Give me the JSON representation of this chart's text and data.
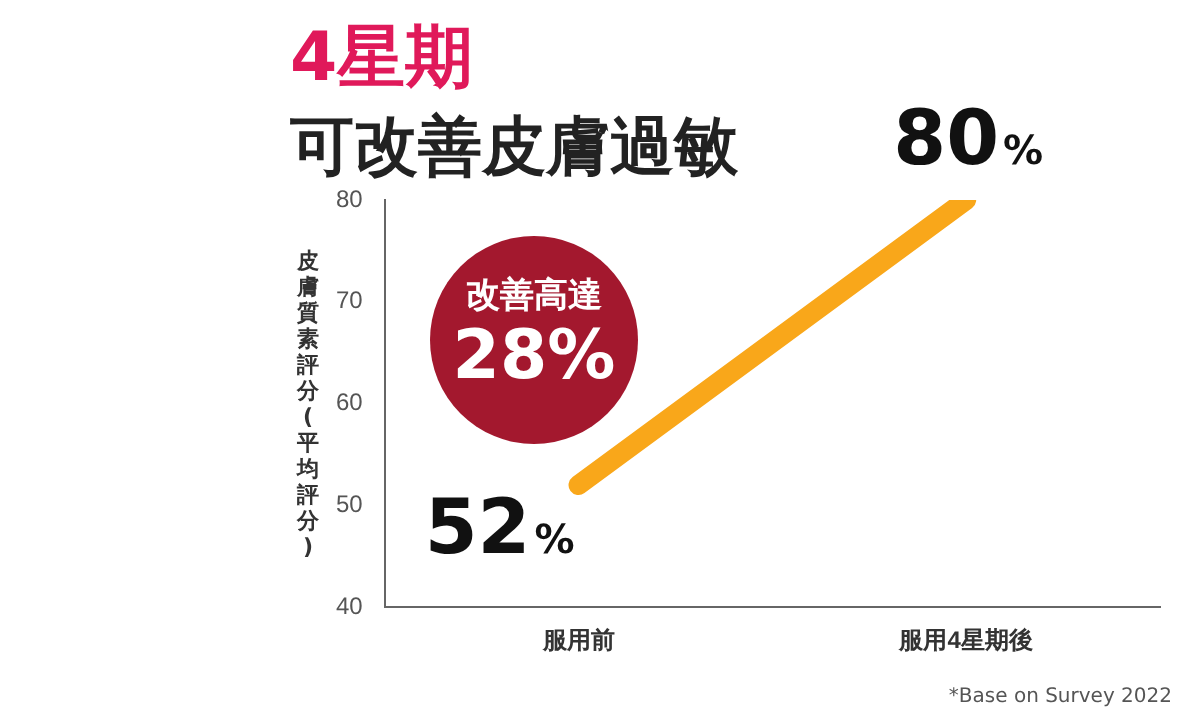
{
  "chart_data": {
    "type": "line",
    "title": "4星期",
    "subtitle": "可改善皮膚過敏",
    "ylabel": "皮膚質素評分(平均評分)",
    "categories": [
      "服用前",
      "服用4星期後"
    ],
    "series": [
      {
        "color": "#f9a71a",
        "values": [
          52,
          80
        ],
        "value_labels": [
          "52%",
          "80%"
        ]
      }
    ],
    "ylim": [
      40,
      80
    ],
    "yticks": [
      40,
      50,
      60,
      70,
      80
    ],
    "grid": false,
    "legend": false,
    "marker": "none",
    "line_style": "solid",
    "annotations": [
      "改善高達 28%",
      "*Base on Survey 2022"
    ]
  }
}
